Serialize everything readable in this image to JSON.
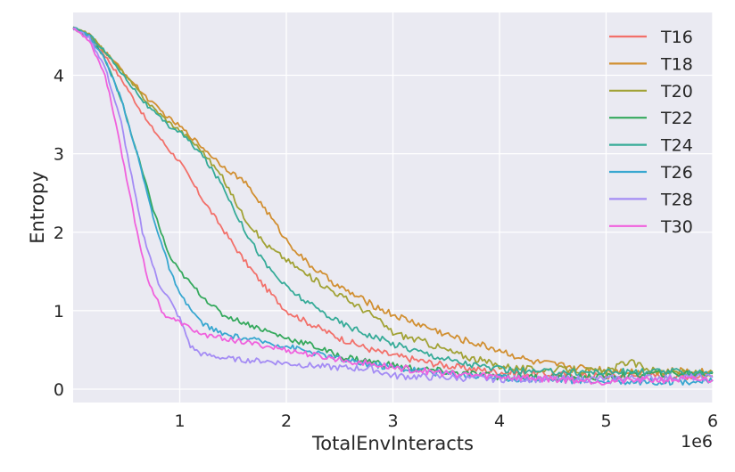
{
  "chart_data": {
    "type": "line",
    "xlabel": "TotalEnvInteracts",
    "ylabel": "Entropy",
    "x_offset_label": "1e6",
    "x_scale": 1000000,
    "xlim": [
      0,
      6000000
    ],
    "ylim": [
      -0.17,
      4.8
    ],
    "x_ticks": [
      1000000,
      2000000,
      3000000,
      4000000,
      5000000,
      6000000
    ],
    "x_tick_labels": [
      "1",
      "2",
      "3",
      "4",
      "5",
      "6"
    ],
    "y_ticks": [
      0,
      1,
      2,
      3,
      4
    ],
    "y_tick_labels": [
      "0",
      "1",
      "2",
      "3",
      "4"
    ],
    "grid": true,
    "legend_position": "top-right",
    "background": "#eaeaf2",
    "series": [
      {
        "name": "T16",
        "color": "#f2706a",
        "points": [
          [
            0,
            4.6
          ],
          [
            150000,
            4.5
          ],
          [
            300000,
            4.25
          ],
          [
            500000,
            3.85
          ],
          [
            700000,
            3.4
          ],
          [
            900000,
            3.05
          ],
          [
            1000000,
            2.9
          ],
          [
            1200000,
            2.45
          ],
          [
            1400000,
            2.05
          ],
          [
            1600000,
            1.65
          ],
          [
            1800000,
            1.3
          ],
          [
            2000000,
            1.0
          ],
          [
            2200000,
            0.85
          ],
          [
            2500000,
            0.65
          ],
          [
            2800000,
            0.5
          ],
          [
            3000000,
            0.43
          ],
          [
            3300000,
            0.35
          ],
          [
            3600000,
            0.28
          ],
          [
            4000000,
            0.22
          ],
          [
            4300000,
            0.2
          ],
          [
            4700000,
            0.18
          ],
          [
            5000000,
            0.17
          ],
          [
            5500000,
            0.17
          ],
          [
            6000000,
            0.17
          ]
        ]
      },
      {
        "name": "T18",
        "color": "#d18f31",
        "points": [
          [
            0,
            4.6
          ],
          [
            150000,
            4.52
          ],
          [
            300000,
            4.3
          ],
          [
            500000,
            4.0
          ],
          [
            700000,
            3.7
          ],
          [
            900000,
            3.45
          ],
          [
            1000000,
            3.35
          ],
          [
            1200000,
            3.1
          ],
          [
            1400000,
            2.85
          ],
          [
            1600000,
            2.65
          ],
          [
            1800000,
            2.3
          ],
          [
            2000000,
            1.9
          ],
          [
            2200000,
            1.6
          ],
          [
            2500000,
            1.3
          ],
          [
            2800000,
            1.08
          ],
          [
            3000000,
            0.95
          ],
          [
            3300000,
            0.8
          ],
          [
            3600000,
            0.65
          ],
          [
            4000000,
            0.5
          ],
          [
            4300000,
            0.35
          ],
          [
            4700000,
            0.28
          ],
          [
            5000000,
            0.25
          ],
          [
            5300000,
            0.22
          ],
          [
            5700000,
            0.23
          ],
          [
            6000000,
            0.22
          ]
        ]
      },
      {
        "name": "T20",
        "color": "#a1a235",
        "points": [
          [
            0,
            4.6
          ],
          [
            150000,
            4.52
          ],
          [
            300000,
            4.3
          ],
          [
            500000,
            3.98
          ],
          [
            700000,
            3.65
          ],
          [
            900000,
            3.4
          ],
          [
            1000000,
            3.3
          ],
          [
            1200000,
            3.05
          ],
          [
            1400000,
            2.7
          ],
          [
            1600000,
            2.2
          ],
          [
            1800000,
            1.85
          ],
          [
            2000000,
            1.65
          ],
          [
            2200000,
            1.45
          ],
          [
            2500000,
            1.2
          ],
          [
            2800000,
            0.95
          ],
          [
            3000000,
            0.72
          ],
          [
            3300000,
            0.6
          ],
          [
            3600000,
            0.45
          ],
          [
            4000000,
            0.3
          ],
          [
            4300000,
            0.25
          ],
          [
            4700000,
            0.25
          ],
          [
            5000000,
            0.22
          ],
          [
            5200000,
            0.35
          ],
          [
            5500000,
            0.22
          ],
          [
            6000000,
            0.2
          ]
        ]
      },
      {
        "name": "T22",
        "color": "#35a95d",
        "points": [
          [
            0,
            4.6
          ],
          [
            150000,
            4.5
          ],
          [
            300000,
            4.2
          ],
          [
            450000,
            3.7
          ],
          [
            600000,
            3.0
          ],
          [
            750000,
            2.3
          ],
          [
            900000,
            1.7
          ],
          [
            1000000,
            1.5
          ],
          [
            1200000,
            1.2
          ],
          [
            1400000,
            0.95
          ],
          [
            1600000,
            0.85
          ],
          [
            1800000,
            0.75
          ],
          [
            2000000,
            0.65
          ],
          [
            2200000,
            0.58
          ],
          [
            2500000,
            0.42
          ],
          [
            2800000,
            0.35
          ],
          [
            3100000,
            0.28
          ],
          [
            3500000,
            0.22
          ],
          [
            4000000,
            0.16
          ],
          [
            4500000,
            0.15
          ],
          [
            5000000,
            0.16
          ],
          [
            5500000,
            0.2
          ],
          [
            6000000,
            0.2
          ]
        ]
      },
      {
        "name": "T24",
        "color": "#36ab98",
        "points": [
          [
            0,
            4.6
          ],
          [
            150000,
            4.52
          ],
          [
            300000,
            4.3
          ],
          [
            500000,
            3.95
          ],
          [
            700000,
            3.6
          ],
          [
            900000,
            3.35
          ],
          [
            1000000,
            3.28
          ],
          [
            1200000,
            3.0
          ],
          [
            1400000,
            2.6
          ],
          [
            1600000,
            2.05
          ],
          [
            1800000,
            1.6
          ],
          [
            2000000,
            1.3
          ],
          [
            2200000,
            1.1
          ],
          [
            2500000,
            0.85
          ],
          [
            2800000,
            0.68
          ],
          [
            3000000,
            0.58
          ],
          [
            3300000,
            0.46
          ],
          [
            3600000,
            0.35
          ],
          [
            4000000,
            0.25
          ],
          [
            4300000,
            0.22
          ],
          [
            4700000,
            0.22
          ],
          [
            5000000,
            0.22
          ],
          [
            5500000,
            0.22
          ],
          [
            6000000,
            0.22
          ]
        ]
      },
      {
        "name": "T26",
        "color": "#38a7d0",
        "points": [
          [
            0,
            4.6
          ],
          [
            150000,
            4.5
          ],
          [
            300000,
            4.2
          ],
          [
            450000,
            3.7
          ],
          [
            600000,
            3.0
          ],
          [
            750000,
            2.2
          ],
          [
            900000,
            1.55
          ],
          [
            1000000,
            1.2
          ],
          [
            1200000,
            0.85
          ],
          [
            1400000,
            0.7
          ],
          [
            1600000,
            0.65
          ],
          [
            1800000,
            0.6
          ],
          [
            2000000,
            0.55
          ],
          [
            2300000,
            0.45
          ],
          [
            2600000,
            0.35
          ],
          [
            3000000,
            0.28
          ],
          [
            3500000,
            0.2
          ],
          [
            4000000,
            0.15
          ],
          [
            4500000,
            0.12
          ],
          [
            5000000,
            0.1
          ],
          [
            5500000,
            0.1
          ],
          [
            6000000,
            0.1
          ]
        ]
      },
      {
        "name": "T28",
        "color": "#a48cf4",
        "points": [
          [
            0,
            4.6
          ],
          [
            150000,
            4.48
          ],
          [
            300000,
            4.1
          ],
          [
            450000,
            3.4
          ],
          [
            550000,
            2.7
          ],
          [
            650000,
            2.0
          ],
          [
            800000,
            1.35
          ],
          [
            900000,
            1.15
          ],
          [
            1000000,
            0.9
          ],
          [
            1100000,
            0.55
          ],
          [
            1200000,
            0.45
          ],
          [
            1400000,
            0.4
          ],
          [
            1600000,
            0.37
          ],
          [
            1800000,
            0.36
          ],
          [
            2000000,
            0.33
          ],
          [
            2400000,
            0.28
          ],
          [
            2800000,
            0.26
          ],
          [
            3000000,
            0.17
          ],
          [
            3500000,
            0.15
          ],
          [
            4000000,
            0.13
          ],
          [
            4500000,
            0.13
          ],
          [
            5000000,
            0.13
          ],
          [
            5500000,
            0.15
          ],
          [
            6000000,
            0.15
          ]
        ]
      },
      {
        "name": "T30",
        "color": "#f061dd",
        "points": [
          [
            0,
            4.6
          ],
          [
            150000,
            4.45
          ],
          [
            300000,
            4.0
          ],
          [
            400000,
            3.4
          ],
          [
            500000,
            2.7
          ],
          [
            600000,
            2.0
          ],
          [
            700000,
            1.4
          ],
          [
            850000,
            0.95
          ],
          [
            1000000,
            0.85
          ],
          [
            1200000,
            0.7
          ],
          [
            1400000,
            0.65
          ],
          [
            1600000,
            0.6
          ],
          [
            1800000,
            0.55
          ],
          [
            2000000,
            0.5
          ],
          [
            2300000,
            0.42
          ],
          [
            2600000,
            0.36
          ],
          [
            3000000,
            0.28
          ],
          [
            3500000,
            0.2
          ],
          [
            4000000,
            0.16
          ],
          [
            4500000,
            0.13
          ],
          [
            5000000,
            0.1
          ],
          [
            5500000,
            0.12
          ],
          [
            6000000,
            0.12
          ]
        ]
      }
    ]
  }
}
